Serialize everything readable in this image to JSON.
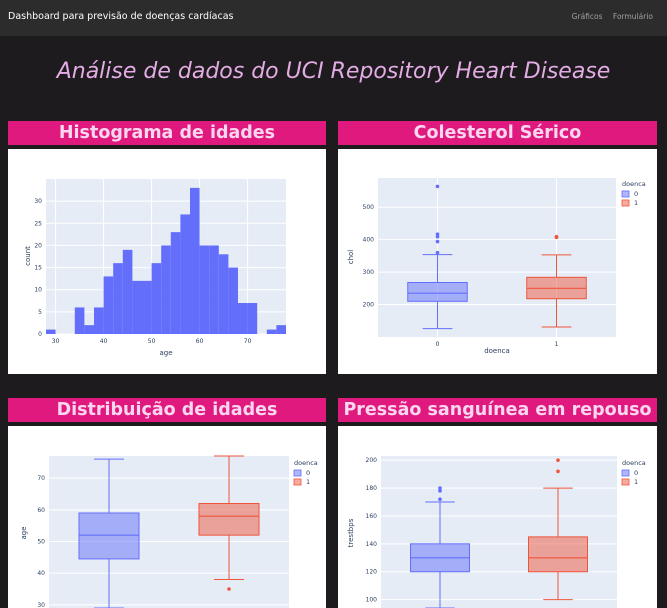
{
  "navbar": {
    "brand": "Dashboard para previsão de doenças cardíacas",
    "links": [
      "Gráficos",
      "Formulário"
    ]
  },
  "page_title": "Análise de dados do UCI Repository Heart Disease",
  "cards": [
    {
      "title": "Histograma de idades"
    },
    {
      "title": "Colesterol Sérico"
    },
    {
      "title": "Distribuição de idades"
    },
    {
      "title": "Pressão sanguínea em repouso"
    }
  ],
  "colors": {
    "series0": "#636efa",
    "series1": "#ef553b",
    "header": "#e0197f",
    "plot_bg": "#e5ecf6"
  },
  "chart_data": [
    {
      "type": "bar",
      "title": "Histograma de idades",
      "xlabel": "age",
      "ylabel": "count",
      "bin_start": 28,
      "bin_width": 2,
      "values": [
        1,
        0,
        0,
        6,
        2,
        6,
        13,
        16,
        19,
        12,
        12,
        16,
        20,
        23,
        27,
        33,
        20,
        20,
        18,
        15,
        7,
        7,
        0,
        1,
        2
      ],
      "xlim": [
        28,
        78
      ],
      "ylim": [
        0,
        35
      ],
      "xticks": [
        30,
        40,
        50,
        60,
        70
      ],
      "yticks": [
        0,
        5,
        10,
        15,
        20,
        25,
        30
      ]
    },
    {
      "type": "box",
      "title": "Colesterol Sérico",
      "xlabel": "doenca",
      "ylabel": "chol",
      "legend_title": "doenca",
      "categories": [
        "0",
        "1"
      ],
      "ylim": [
        100,
        590
      ],
      "yticks": [
        200,
        300,
        400,
        500
      ],
      "series": [
        {
          "name": "0",
          "min": 126,
          "q1": 210,
          "median": 235,
          "q3": 268,
          "max": 354,
          "outliers": [
            564,
            417,
            409,
            394,
            360
          ]
        },
        {
          "name": "1",
          "min": 131,
          "q1": 218,
          "median": 250,
          "q3": 284,
          "max": 353,
          "outliers": [
            409,
            407
          ]
        }
      ]
    },
    {
      "type": "box",
      "title": "Distribuição de idades",
      "xlabel": "",
      "ylabel": "age",
      "legend_title": "doenca",
      "categories": [
        "0",
        "1"
      ],
      "ylim": [
        29,
        77
      ],
      "yticks": [
        30,
        40,
        50,
        60,
        70
      ],
      "series": [
        {
          "name": "0",
          "min": 29,
          "q1": 44.5,
          "median": 52,
          "q3": 59,
          "max": 76,
          "outliers": []
        },
        {
          "name": "1",
          "min": 38,
          "q1": 52,
          "median": 58,
          "q3": 62,
          "max": 77,
          "outliers": [
            35
          ]
        }
      ]
    },
    {
      "type": "box",
      "title": "Pressão sanguínea em repouso",
      "xlabel": "",
      "ylabel": "trestbps",
      "legend_title": "doenca",
      "categories": [
        "0",
        "1"
      ],
      "ylim": [
        94,
        203
      ],
      "yticks": [
        100,
        120,
        140,
        160,
        180,
        200
      ],
      "series": [
        {
          "name": "0",
          "min": 94,
          "q1": 120,
          "median": 130,
          "q3": 140,
          "max": 170,
          "outliers": [
            172,
            178,
            180
          ]
        },
        {
          "name": "1",
          "min": 100,
          "q1": 120,
          "median": 130,
          "q3": 145,
          "max": 180,
          "outliers": [
            192,
            200
          ]
        }
      ]
    }
  ]
}
